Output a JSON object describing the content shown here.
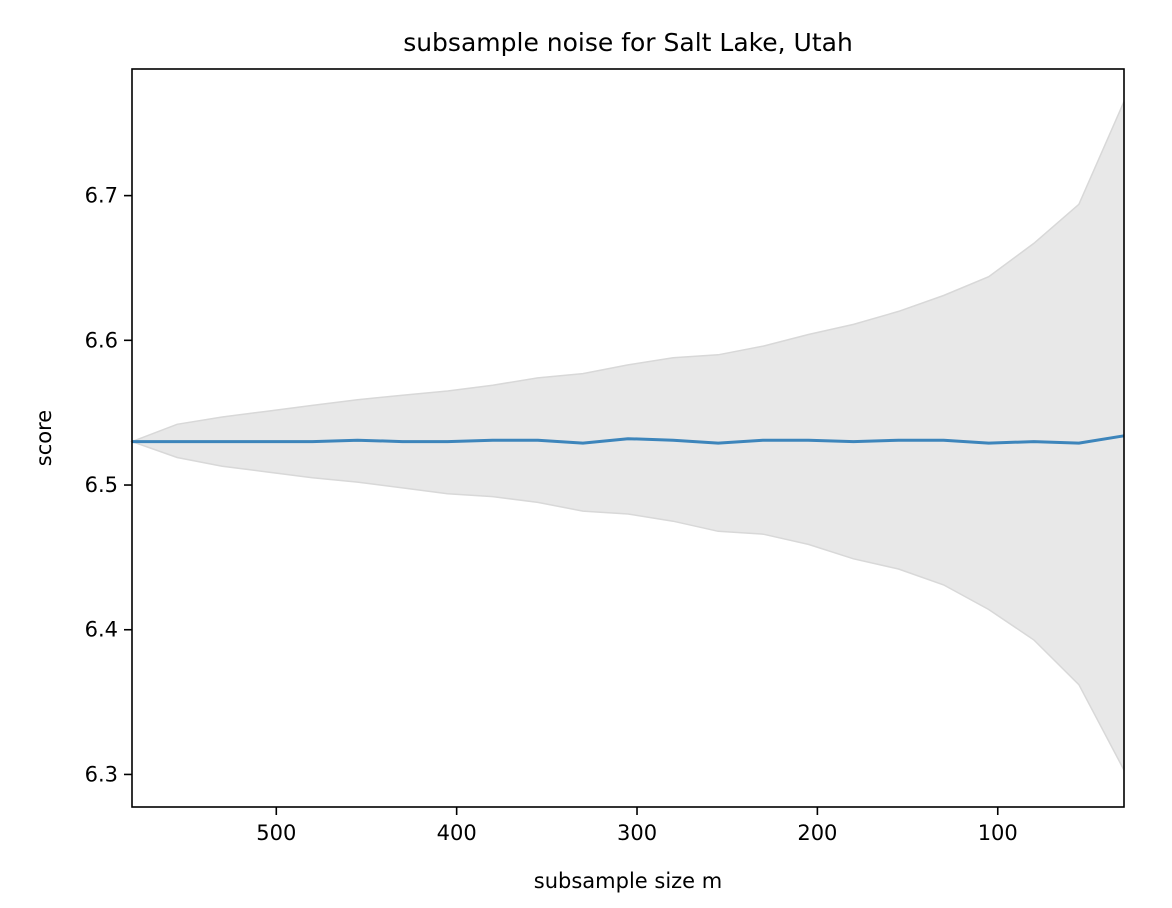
{
  "chart_data": {
    "type": "line",
    "title": "subsample noise for Salt Lake, Utah",
    "xlabel": "subsample size m",
    "ylabel": "score",
    "xlim": [
      580,
      30
    ],
    "ylim": [
      6.2775,
      6.7875
    ],
    "x_inverted": true,
    "xticks": [
      500,
      400,
      300,
      200,
      100
    ],
    "xtick_labels": [
      "500",
      "400",
      "300",
      "200",
      "100"
    ],
    "yticks": [
      6.3,
      6.4,
      6.5,
      6.6,
      6.7
    ],
    "ytick_labels": [
      "6.3",
      "6.4",
      "6.5",
      "6.6",
      "6.7"
    ],
    "grid": false,
    "legend": "none",
    "series": [
      {
        "x": [
          580,
          555,
          530,
          505,
          480,
          455,
          430,
          405,
          380,
          355,
          330,
          305,
          280,
          255,
          230,
          205,
          180,
          155,
          130,
          105,
          80,
          55,
          30
        ],
        "values": [
          6.53,
          6.53,
          6.53,
          6.53,
          6.53,
          6.531,
          6.53,
          6.53,
          6.531,
          6.531,
          6.529,
          6.532,
          6.531,
          6.529,
          6.531,
          6.531,
          6.53,
          6.531,
          6.531,
          6.529,
          6.53,
          6.529,
          6.534
        ],
        "upper": [
          6.53,
          6.542,
          6.547,
          6.551,
          6.555,
          6.559,
          6.562,
          6.565,
          6.569,
          6.574,
          6.577,
          6.583,
          6.588,
          6.59,
          6.596,
          6.604,
          6.611,
          6.62,
          6.631,
          6.644,
          6.667,
          6.694,
          6.765
        ],
        "lower": [
          6.53,
          6.519,
          6.513,
          6.509,
          6.505,
          6.502,
          6.498,
          6.494,
          6.492,
          6.488,
          6.482,
          6.48,
          6.475,
          6.468,
          6.466,
          6.459,
          6.449,
          6.442,
          6.431,
          6.414,
          6.393,
          6.362,
          6.303
        ]
      }
    ]
  },
  "colors": {
    "line": "#3d85bb",
    "band_fill": "#e8e8e8",
    "band_edge": "#d8d8d8",
    "axes": "#000000"
  }
}
